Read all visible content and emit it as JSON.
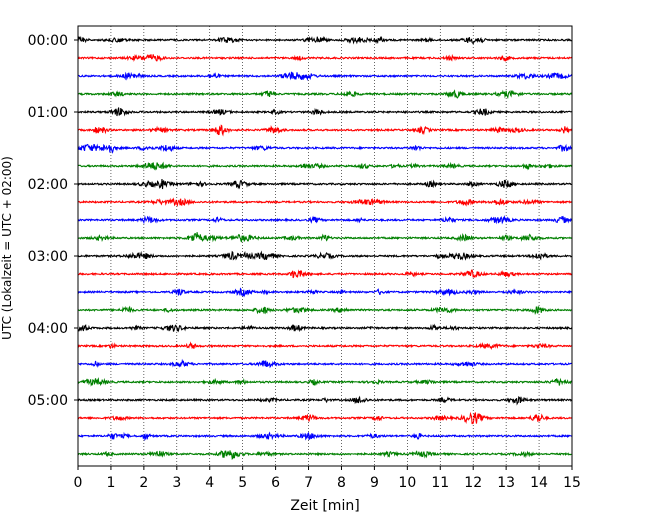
{
  "chart_data": {
    "type": "line",
    "xlabel": "Zeit  [min]",
    "ylabel": "UTC (Lokalzeit = UTC + 02:00)",
    "xlim": [
      0,
      15
    ],
    "x_ticks": [
      0,
      1,
      2,
      3,
      4,
      5,
      6,
      7,
      8,
      9,
      10,
      11,
      12,
      13,
      14,
      15
    ],
    "x_tick_labels": [
      "0",
      "1",
      "2",
      "3",
      "4",
      "5",
      "6",
      "7",
      "8",
      "9",
      "10",
      "11",
      "12",
      "13",
      "14",
      "15"
    ],
    "y_tick_labels": [
      "00:00",
      "01:00",
      "02:00",
      "03:00",
      "04:00",
      "05:00"
    ],
    "rows_per_hour": 4,
    "trace_count": 24,
    "trace_colors": [
      "#000000",
      "#ff0000",
      "#0000ff",
      "#008000"
    ],
    "grid": "vertical-dotted",
    "legend": "none"
  }
}
